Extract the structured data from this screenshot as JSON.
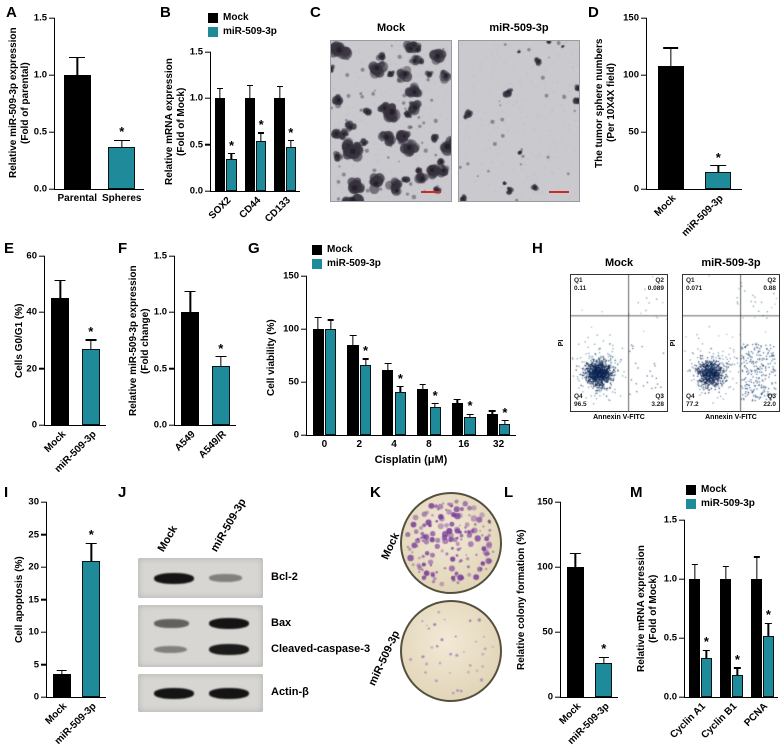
{
  "figure": {
    "colors": {
      "mock": "#000000",
      "mir": "#1f8a9a"
    },
    "sig_marker": "*"
  },
  "panels": {
    "a": "A",
    "b": "B",
    "c": "C",
    "d": "D",
    "e": "E",
    "f": "F",
    "g": "G",
    "h": "H",
    "i": "I",
    "j": "J",
    "k": "K",
    "l": "L",
    "m": "M"
  },
  "microscopy": {
    "titles": [
      "Mock",
      "miR-509-3p"
    ]
  },
  "flow": {
    "ylabel": "PI",
    "xlabel": "Annexin V-FITC",
    "plots": [
      {
        "title": "Mock",
        "quadrants": [
          {
            "name": "Q1",
            "value": "0.11"
          },
          {
            "name": "Q2",
            "value": "0.089"
          },
          {
            "name": "Q3",
            "value": "3.28"
          },
          {
            "name": "Q4",
            "value": "96.5"
          }
        ]
      },
      {
        "title": "miR-509-3p",
        "quadrants": [
          {
            "name": "Q1",
            "value": "0.071"
          },
          {
            "name": "Q2",
            "value": "0.88"
          },
          {
            "name": "Q3",
            "value": "22.0"
          },
          {
            "name": "Q4",
            "value": "77.2"
          }
        ]
      }
    ]
  },
  "blot": {
    "lanes": [
      "Mock",
      "miR-509-3p"
    ],
    "boxes": [
      {
        "bands": [
          {
            "label": "Bcl-2",
            "intensity": [
              1.0,
              0.3
            ]
          }
        ]
      },
      {
        "bands": [
          {
            "label": "Bax",
            "intensity": [
              0.5,
              1.0
            ]
          },
          {
            "label": "Cleaved-caspase-3",
            "intensity": [
              0.3,
              0.95
            ]
          }
        ]
      },
      {
        "bands": [
          {
            "label": "Actin-β",
            "intensity": [
              1.0,
              1.0
            ]
          }
        ]
      }
    ]
  },
  "colony": {
    "labels": [
      "Mock",
      "miR-509-3p"
    ]
  },
  "chart_data": [
    {
      "id": "A",
      "type": "bar",
      "ylabel": "Relative miR-509-3p expression",
      "ylabel2": "(Fold of parental)",
      "ylim": [
        0,
        1.5
      ],
      "yticks": [
        "0.0",
        "0.5",
        "1.0",
        "1.5"
      ],
      "bar_frac": 0.6,
      "rotate_xlabels": false,
      "bars": [
        {
          "label": "Parental",
          "value": 1.0,
          "error": 0.15,
          "sig": false,
          "color": "mock"
        },
        {
          "label": "Spheres",
          "value": 0.37,
          "error": 0.05,
          "sig": true,
          "color": "mir"
        }
      ]
    },
    {
      "id": "B",
      "type": "bar",
      "ylabel": "Relative mRNA expression",
      "ylabel2": "(Fold of Mock)",
      "ylim": [
        0,
        1.5
      ],
      "yticks": [
        "0.0",
        "0.5",
        "1.0",
        "1.5"
      ],
      "bar_frac": 0.34,
      "rotate_xlabels": true,
      "legend_position": "top-left",
      "categories": [
        "SOX2",
        "CD44",
        "CD133"
      ],
      "series": [
        {
          "name": "Mock",
          "color": "mock",
          "values": [
            1.0,
            1.0,
            1.0
          ],
          "errors": [
            0.1,
            0.13,
            0.12
          ],
          "sig": [
            false,
            false,
            false
          ]
        },
        {
          "name": "miR-509-3p",
          "color": "mir",
          "values": [
            0.35,
            0.54,
            0.47
          ],
          "errors": [
            0.05,
            0.08,
            0.07
          ],
          "sig": [
            true,
            true,
            true
          ]
        }
      ]
    },
    {
      "id": "D",
      "type": "bar",
      "ylabel": "The tumor sphere numbers",
      "ylabel2": "(Per 10X4X field)",
      "ylim": [
        0,
        150
      ],
      "yticks": [
        "0",
        "50",
        "100",
        "150"
      ],
      "bar_frac": 0.55,
      "rotate_xlabels": true,
      "bars": [
        {
          "label": "Mock",
          "value": 108,
          "error": 15,
          "sig": false,
          "color": "mock"
        },
        {
          "label": "miR-509-3p",
          "value": 15,
          "error": 5,
          "sig": true,
          "color": "mir"
        }
      ]
    },
    {
      "id": "E",
      "type": "bar",
      "ylabel": "Cells G0/G1 (%)",
      "ylabel2": "",
      "ylim": [
        0,
        60
      ],
      "yticks": [
        "0",
        "20",
        "40",
        "60"
      ],
      "bar_frac": 0.6,
      "rotate_xlabels": true,
      "bars": [
        {
          "label": "Mock",
          "value": 45,
          "error": 6,
          "sig": false,
          "color": "mock"
        },
        {
          "label": "miR-509-3p",
          "value": 27,
          "error": 3,
          "sig": true,
          "color": "mir"
        }
      ]
    },
    {
      "id": "F",
      "type": "bar",
      "ylabel": "Relative miR-509-3p expression",
      "ylabel2": "(Fold change)",
      "ylim": [
        0,
        1.5
      ],
      "yticks": [
        "0.0",
        "0.5",
        "1.0",
        "1.5"
      ],
      "bar_frac": 0.6,
      "rotate_xlabels": true,
      "bars": [
        {
          "label": "A549",
          "value": 1.0,
          "error": 0.18,
          "sig": false,
          "color": "mock"
        },
        {
          "label": "A549/R",
          "value": 0.52,
          "error": 0.08,
          "sig": true,
          "color": "mir"
        }
      ]
    },
    {
      "id": "G",
      "type": "bar",
      "ylabel": "Cell viability (%)",
      "ylabel2": "",
      "xlabel": "Cisplatin (μM)",
      "ylim": [
        0,
        150
      ],
      "yticks": [
        "0",
        "50",
        "100",
        "150"
      ],
      "bar_frac": 0.32,
      "rotate_xlabels": false,
      "legend_position": "top-left",
      "categories": [
        "0",
        "2",
        "4",
        "8",
        "16",
        "32"
      ],
      "series": [
        {
          "name": "Mock",
          "color": "mock",
          "values": [
            100,
            85,
            61,
            43,
            30,
            20
          ],
          "errors": [
            10,
            8,
            6,
            4,
            3,
            2
          ],
          "sig": [
            false,
            false,
            false,
            false,
            false,
            false
          ]
        },
        {
          "name": "miR-509-3p",
          "color": "mir",
          "values": [
            100,
            66,
            41,
            26,
            17,
            10
          ],
          "errors": [
            8,
            5,
            4,
            3,
            2,
            3
          ],
          "sig": [
            false,
            true,
            true,
            true,
            true,
            true
          ]
        }
      ]
    },
    {
      "id": "I",
      "type": "bar",
      "ylabel": "Cell apoptosis (%)",
      "ylabel2": "",
      "ylim": [
        0,
        30
      ],
      "yticks": [
        "0",
        "5",
        "10",
        "15",
        "20",
        "25",
        "30"
      ],
      "bar_frac": 0.6,
      "rotate_xlabels": true,
      "bars": [
        {
          "label": "Mock",
          "value": 3.5,
          "error": 0.5,
          "sig": false,
          "color": "mock"
        },
        {
          "label": "miR-509-3p",
          "value": 21,
          "error": 2.5,
          "sig": true,
          "color": "mir"
        }
      ]
    },
    {
      "id": "L",
      "type": "bar",
      "ylabel": "Relative colony formation (%)",
      "ylabel2": "",
      "ylim": [
        0,
        150
      ],
      "yticks": [
        "0",
        "50",
        "100",
        "150"
      ],
      "bar_frac": 0.6,
      "rotate_xlabels": true,
      "bars": [
        {
          "label": "Mock",
          "value": 100,
          "error": 10,
          "sig": false,
          "color": "mock"
        },
        {
          "label": "miR-509-3p",
          "value": 26,
          "error": 4,
          "sig": true,
          "color": "mir"
        }
      ]
    },
    {
      "id": "M",
      "type": "bar",
      "ylabel": "Relative mRNA expression",
      "ylabel2": "(Fold of Mock)",
      "ylim": [
        0,
        1.5
      ],
      "yticks": [
        "0.0",
        "0.5",
        "1.0",
        "1.5"
      ],
      "bar_frac": 0.34,
      "rotate_xlabels": true,
      "legend_position": "top-right",
      "categories": [
        "Cyclin A1",
        "Cyclin B1",
        "PCNA"
      ],
      "series": [
        {
          "name": "Mock",
          "color": "mock",
          "values": [
            1.0,
            1.0,
            1.0
          ],
          "errors": [
            0.12,
            0.1,
            0.18
          ],
          "sig": [
            false,
            false,
            false
          ]
        },
        {
          "name": "miR-509-3p",
          "color": "mir",
          "values": [
            0.33,
            0.19,
            0.52
          ],
          "errors": [
            0.06,
            0.05,
            0.1
          ],
          "sig": [
            true,
            true,
            true
          ]
        }
      ]
    }
  ]
}
